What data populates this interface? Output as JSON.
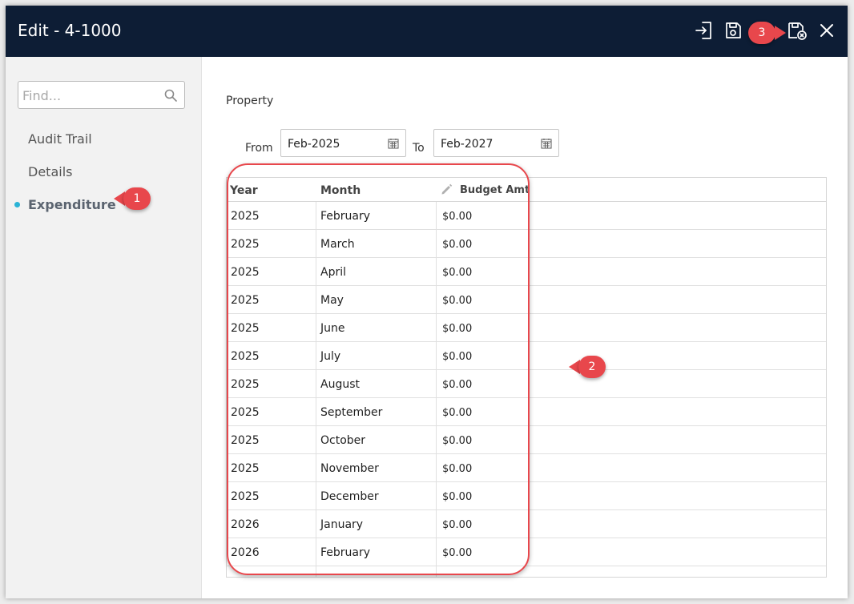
{
  "window": {
    "title": "Edit - 4-1000"
  },
  "toolbar": {
    "icons": [
      "export-icon",
      "save-icon",
      "save-close-icon",
      "close-icon"
    ]
  },
  "sidebar": {
    "search_placeholder": "Find...",
    "items": [
      {
        "label": "Audit Trail",
        "active": false
      },
      {
        "label": "Details",
        "active": false
      },
      {
        "label": "Expenditure",
        "active": true
      }
    ]
  },
  "main": {
    "section_label": "Property",
    "range": {
      "from_label": "From",
      "from_value": "Feb-2025",
      "to_label": "To",
      "to_value": "Feb-2027"
    },
    "grid": {
      "headers": {
        "year": "Year",
        "month": "Month",
        "budget": "Budget Amt"
      },
      "rows": [
        {
          "year": "2025",
          "month": "February",
          "amount": "$0.00"
        },
        {
          "year": "2025",
          "month": "March",
          "amount": "$0.00"
        },
        {
          "year": "2025",
          "month": "April",
          "amount": "$0.00"
        },
        {
          "year": "2025",
          "month": "May",
          "amount": "$0.00"
        },
        {
          "year": "2025",
          "month": "June",
          "amount": "$0.00"
        },
        {
          "year": "2025",
          "month": "July",
          "amount": "$0.00"
        },
        {
          "year": "2025",
          "month": "August",
          "amount": "$0.00"
        },
        {
          "year": "2025",
          "month": "September",
          "amount": "$0.00"
        },
        {
          "year": "2025",
          "month": "October",
          "amount": "$0.00"
        },
        {
          "year": "2025",
          "month": "November",
          "amount": "$0.00"
        },
        {
          "year": "2025",
          "month": "December",
          "amount": "$0.00"
        },
        {
          "year": "2026",
          "month": "January",
          "amount": "$0.00"
        },
        {
          "year": "2026",
          "month": "February",
          "amount": "$0.00"
        }
      ]
    }
  },
  "callouts": {
    "one": "1",
    "two": "2",
    "three": "3"
  },
  "colors": {
    "titlebar": "#0d1d35",
    "accent_dot": "#2ab3d6",
    "callout": "#e8474c"
  }
}
